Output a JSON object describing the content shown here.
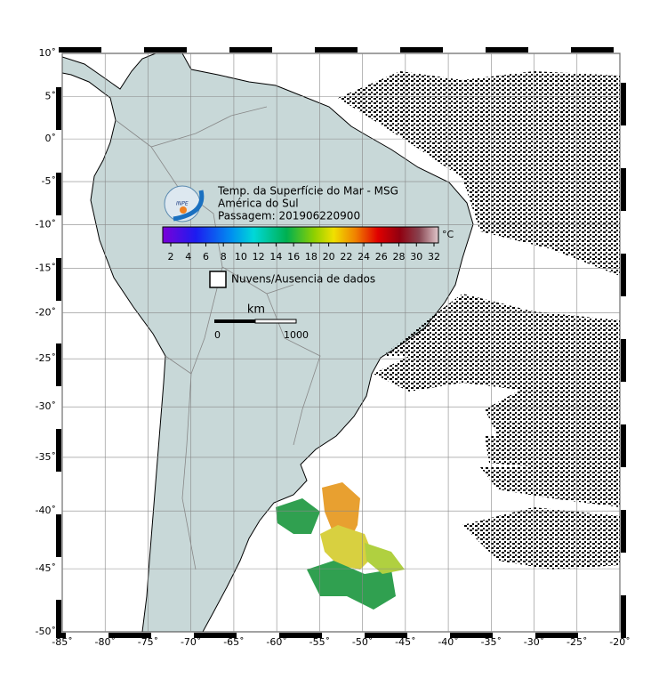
{
  "map": {
    "lonlim": [
      -85,
      -20
    ],
    "latlim": [
      -50,
      10
    ],
    "lon_ticks": [
      {
        "value": -85,
        "label": "-85˚"
      },
      {
        "value": -80,
        "label": "-80˚"
      },
      {
        "value": -75,
        "label": "-75˚"
      },
      {
        "value": -70,
        "label": "-70˚"
      },
      {
        "value": -65,
        "label": "-65˚"
      },
      {
        "value": -60,
        "label": "-60˚"
      },
      {
        "value": -55,
        "label": "-55˚"
      },
      {
        "value": -50,
        "label": "-50˚"
      },
      {
        "value": -45,
        "label": "-45˚"
      },
      {
        "value": -40,
        "label": "-40˚"
      },
      {
        "value": -35,
        "label": "-35˚"
      },
      {
        "value": -30,
        "label": "-30˚"
      },
      {
        "value": -25,
        "label": "-25˚"
      },
      {
        "value": -20,
        "label": "-20˚"
      }
    ],
    "lat_ticks": [
      {
        "value": 10,
        "label": "10˚"
      },
      {
        "value": 5,
        "label": "5˚"
      },
      {
        "value": 0,
        "label": "0˚"
      },
      {
        "value": -5,
        "label": "-5˚"
      },
      {
        "value": -10,
        "label": "-10˚"
      },
      {
        "value": -15,
        "label": "-15˚"
      },
      {
        "value": -20,
        "label": "-20˚"
      },
      {
        "value": -25,
        "label": "-25˚"
      },
      {
        "value": -30,
        "label": "-30˚"
      },
      {
        "value": -35,
        "label": "-35˚"
      },
      {
        "value": -40,
        "label": "-40˚"
      },
      {
        "value": -45,
        "label": "-45˚"
      },
      {
        "value": -50,
        "label": "-50˚"
      }
    ],
    "grid": true
  },
  "legend": {
    "logo_text": "INPE",
    "title": "Temp. da Superfície do Mar - MSG",
    "region": "América do Sul",
    "pass": "Passagem: 201906220900",
    "colorbar_ticks": [
      2,
      4,
      6,
      8,
      10,
      12,
      14,
      16,
      18,
      20,
      22,
      24,
      26,
      28,
      30,
      32
    ],
    "colorbar_unit": "°C",
    "clouds": "Nuvens/Ausencia de dados",
    "scale_unit": "km",
    "scale_ticks": [
      0,
      1000
    ]
  }
}
